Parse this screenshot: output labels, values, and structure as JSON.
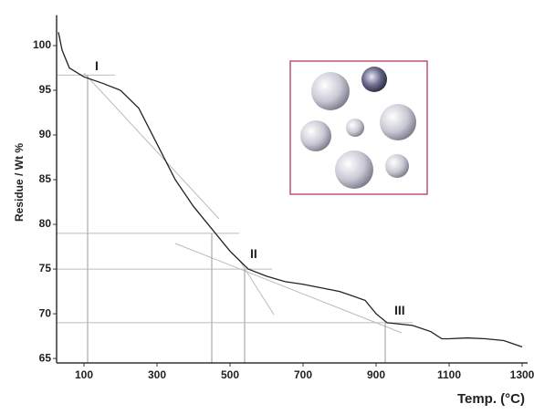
{
  "chart_data": {
    "type": "line",
    "y_label": "Residue / Wt %",
    "x_label": "Temp. (°C)",
    "x": [
      30,
      40,
      60,
      100,
      150,
      200,
      250,
      300,
      350,
      400,
      450,
      500,
      550,
      600,
      650,
      700,
      800,
      870,
      900,
      930,
      1000,
      1050,
      1080,
      1100,
      1150,
      1200,
      1250,
      1300
    ],
    "values": [
      101.5,
      99.5,
      97.5,
      96.5,
      95.8,
      95,
      93,
      89,
      85,
      82,
      79.5,
      77,
      75,
      74.2,
      73.6,
      73.3,
      72.5,
      71.5,
      70,
      69,
      68.7,
      68,
      67.2,
      67.2,
      67.3,
      67.2,
      67,
      66.3
    ],
    "color": "#222222",
    "xlim": [
      25,
      1325
    ],
    "ylim": [
      64.5,
      103
    ],
    "xticks": [
      100,
      300,
      500,
      700,
      900,
      1100,
      1300
    ],
    "yticks": [
      65,
      70,
      75,
      80,
      85,
      90,
      95,
      100
    ],
    "guides": [
      {
        "x": 110,
        "y": 96.7
      },
      {
        "x": 450,
        "y": 79
      },
      {
        "x": 540,
        "y": 75
      },
      {
        "x": 925,
        "y": 69
      }
    ],
    "annotations": [
      {
        "text": "I",
        "x": 130,
        "y": 97.6
      },
      {
        "text": "II",
        "x": 555,
        "y": 76.6
      },
      {
        "text": "III",
        "x": 950,
        "y": 70.3
      }
    ]
  }
}
